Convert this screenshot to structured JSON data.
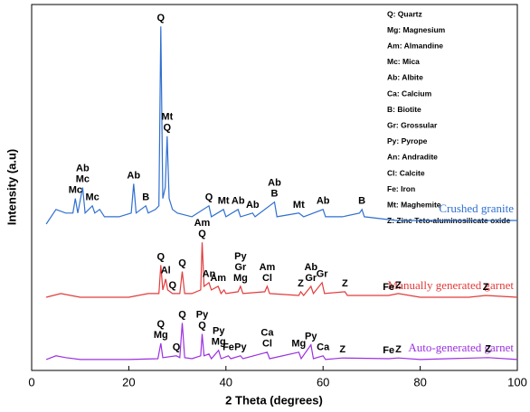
{
  "chart_data": {
    "type": "line",
    "xlabel": "2 Theta (degrees)",
    "ylabel": "Intensity (a.u)",
    "xlim": [
      0,
      100
    ],
    "xticks": [
      0,
      20,
      40,
      60,
      80,
      100
    ],
    "ylim": [
      0,
      100
    ],
    "key": [
      "Q: Quartz",
      "Mg: Magnesium",
      "Am: Almandine",
      "Mc: Mica",
      "Ab: Albite",
      "Ca: Calcium",
      "B: Biotite",
      "Gr: Grossular",
      "Py: Pyrope",
      "An: Andradite",
      "Cl: Calcite",
      "Fe: Iron",
      "Mt: Maghemite",
      "Z: Zinc Teto-aluminosilicate oxide"
    ],
    "series": [
      {
        "name": "Crushed granite",
        "color": "#2f6fd0",
        "x": [
          3,
          5,
          7,
          8.5,
          9,
          9.5,
          10.5,
          11,
          12.5,
          13,
          14,
          15,
          18,
          20.5,
          21,
          21.5,
          22.5,
          23.5,
          24,
          25.5,
          26.2,
          26.6,
          27,
          27.5,
          27.9,
          28.3,
          29,
          30,
          33,
          36.5,
          37,
          39.5,
          40,
          42.5,
          43,
          45.5,
          46,
          50,
          50.5,
          55,
          56,
          60,
          60.5,
          64,
          67.5,
          68,
          68.5,
          75,
          80,
          90,
          100
        ],
        "values": [
          40,
          44,
          43,
          43,
          47,
          43,
          50,
          43,
          45,
          43,
          44,
          42,
          42,
          43,
          51,
          43,
          44,
          45,
          43,
          44,
          45,
          94,
          47,
          50,
          64,
          47,
          44,
          43,
          42,
          45,
          42,
          44,
          42,
          44,
          42,
          43,
          42,
          46,
          42,
          43,
          42,
          44,
          42,
          42,
          43,
          44,
          42,
          41,
          41,
          41,
          41
        ],
        "peaks": [
          {
            "x": 9,
            "labels": [
              "Mc"
            ]
          },
          {
            "x": 10.5,
            "labels": [
              "Ab",
              "Mc"
            ]
          },
          {
            "x": 12.5,
            "labels": [
              "Mc"
            ]
          },
          {
            "x": 21,
            "labels": [
              "Ab"
            ]
          },
          {
            "x": 23.5,
            "labels": [
              "B"
            ]
          },
          {
            "x": 26.6,
            "labels": [
              "Q"
            ]
          },
          {
            "x": 27.9,
            "labels": [
              "Mt",
              "Q"
            ]
          },
          {
            "x": 36.5,
            "labels": [
              "Q"
            ]
          },
          {
            "x": 39.5,
            "labels": [
              "Mt"
            ]
          },
          {
            "x": 42.5,
            "labels": [
              "Ab"
            ]
          },
          {
            "x": 45.5,
            "labels": [
              "Ab"
            ]
          },
          {
            "x": 50,
            "labels": [
              "Ab",
              "B"
            ]
          },
          {
            "x": 55,
            "labels": [
              "Mt"
            ]
          },
          {
            "x": 60,
            "labels": [
              "Ab"
            ]
          },
          {
            "x": 68,
            "labels": [
              "B"
            ]
          }
        ]
      },
      {
        "name": "Manually generated garnet",
        "color": "#e23b3b",
        "x": [
          3,
          6,
          10,
          15,
          20,
          24,
          26.2,
          26.6,
          27,
          27.6,
          28,
          29,
          30.5,
          31,
          31.5,
          33,
          34.8,
          35.1,
          35.5,
          36.5,
          37,
          38.4,
          39,
          39.6,
          40,
          42.5,
          43,
          43.5,
          48,
          48.5,
          49,
          55,
          55.4,
          56,
          57.5,
          58,
          59.8,
          60.3,
          64.5,
          65,
          73.5,
          75.5,
          80,
          90,
          93.5,
          100
        ],
        "values": [
          20,
          21,
          20,
          20,
          20,
          21,
          21,
          28.8,
          22,
          25,
          22,
          21,
          21,
          27,
          21,
          21,
          22,
          35,
          23,
          24,
          22,
          23,
          21,
          22,
          21,
          21.5,
          23,
          21,
          21.5,
          23,
          21,
          20.5,
          21.5,
          20.5,
          23,
          21,
          24,
          21,
          21.5,
          20.5,
          20.5,
          21,
          20,
          20,
          20.5,
          20
        ],
        "peaks": [
          {
            "x": 26.6,
            "labels": [
              "Q"
            ]
          },
          {
            "x": 27.6,
            "labels": [
              "Al"
            ]
          },
          {
            "x": 29,
            "labels": [
              "Q"
            ]
          },
          {
            "x": 31,
            "labels": [
              "Q"
            ]
          },
          {
            "x": 35.1,
            "labels": [
              "Am",
              "Q"
            ]
          },
          {
            "x": 36.5,
            "labels": [
              "An"
            ]
          },
          {
            "x": 38.4,
            "labels": [
              "Am"
            ]
          },
          {
            "x": 43,
            "labels": [
              "Py",
              "Gr",
              "Mg"
            ]
          },
          {
            "x": 48.5,
            "labels": [
              "Am",
              "Cl"
            ]
          },
          {
            "x": 55.4,
            "labels": [
              "Z"
            ]
          },
          {
            "x": 57.5,
            "labels": [
              "Ab",
              "Gr"
            ]
          },
          {
            "x": 59.8,
            "labels": [
              "Gr"
            ]
          },
          {
            "x": 64.5,
            "labels": [
              "Z"
            ]
          },
          {
            "x": 73.5,
            "labels": [
              "Fe"
            ]
          },
          {
            "x": 75.5,
            "labels": [
              "Z"
            ]
          },
          {
            "x": 93.5,
            "labels": [
              "Z"
            ]
          }
        ]
      },
      {
        "name": "Auto-generated garnet",
        "color": "#9b30e0",
        "x": [
          3,
          5,
          7,
          10,
          20,
          26,
          26.6,
          27,
          29.8,
          30.5,
          31,
          31.5,
          33,
          34.8,
          35.1,
          35.5,
          36.5,
          37,
          38.5,
          39,
          40.5,
          41,
          43,
          43.5,
          48.5,
          49,
          55,
          55.5,
          57.5,
          58,
          60,
          60.5,
          64,
          73.5,
          75.5,
          80,
          94,
          100
        ],
        "values": [
          3,
          4,
          3.5,
          3,
          3,
          3.2,
          7.4,
          3.5,
          4,
          3.5,
          13,
          3.5,
          3.2,
          4,
          10,
          4,
          4.5,
          3.2,
          5.5,
          3.2,
          4,
          3.2,
          4,
          3.2,
          5,
          3.2,
          5,
          3.2,
          7,
          3.2,
          4,
          3,
          3.4,
          3.2,
          3.4,
          3,
          3.5,
          3
        ],
        "peaks": [
          {
            "x": 26.6,
            "labels": [
              "Q",
              "Mg"
            ]
          },
          {
            "x": 29.8,
            "labels": [
              "Q"
            ]
          },
          {
            "x": 31,
            "labels": [
              "Q"
            ]
          },
          {
            "x": 35.1,
            "labels": [
              "Py",
              "Q"
            ]
          },
          {
            "x": 38.5,
            "labels": [
              "Py",
              "Mg"
            ]
          },
          {
            "x": 40.5,
            "labels": [
              "Fe"
            ]
          },
          {
            "x": 43,
            "labels": [
              "Py"
            ]
          },
          {
            "x": 48.5,
            "labels": [
              "Ca",
              "Cl"
            ]
          },
          {
            "x": 55,
            "labels": [
              "Mg"
            ]
          },
          {
            "x": 57.5,
            "labels": [
              "Py"
            ]
          },
          {
            "x": 60,
            "labels": [
              "Ca"
            ]
          },
          {
            "x": 64,
            "labels": [
              "Z"
            ]
          },
          {
            "x": 73.5,
            "labels": [
              "Fe"
            ]
          },
          {
            "x": 75.5,
            "labels": [
              "Z"
            ]
          },
          {
            "x": 94,
            "labels": [
              "Z"
            ]
          }
        ]
      }
    ]
  }
}
